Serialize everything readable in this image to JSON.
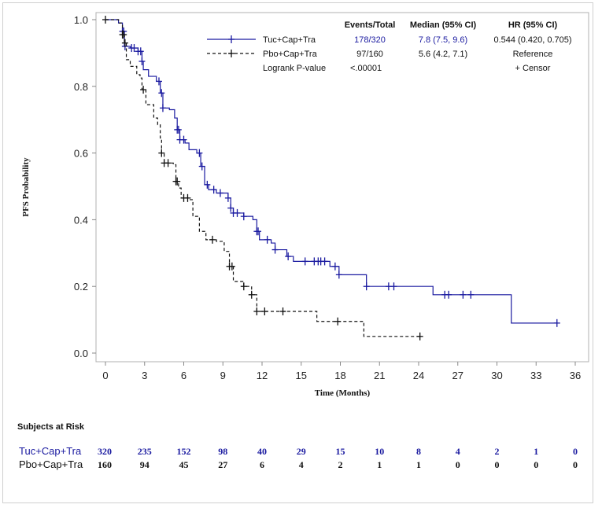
{
  "chart_data": {
    "type": "line",
    "subtype": "kaplan-meier",
    "xlabel": "Time (Months)",
    "ylabel": "PFS Probability",
    "xlim": [
      0,
      36
    ],
    "ylim": [
      0,
      1.0
    ],
    "xticks": [
      "0",
      "3",
      "6",
      "9",
      "12",
      "15",
      "18",
      "21",
      "24",
      "27",
      "30",
      "33",
      "36"
    ],
    "yticks": [
      "0.0",
      "0.2",
      "0.4",
      "0.6",
      "0.8",
      "1.0"
    ],
    "grid": false,
    "legend": {
      "placement": "top-right",
      "headers": [
        "Events/Total",
        "Median (95% CI)",
        "HR (95% CI)"
      ],
      "rows": [
        {
          "name": "Tuc+Cap+Tra",
          "events": "178/320",
          "median": "7.8 (7.5, 9.6)",
          "hr": "0.544 (0.420, 0.705)"
        },
        {
          "name": "Pbo+Cap+Tra",
          "events": "97/160",
          "median": "5.6 (4.2, 7.1)",
          "hr": "Reference"
        }
      ],
      "logrank_label": "Logrank P-value",
      "logrank_value": "<.00001",
      "censor_label": "+ Censor"
    },
    "series": [
      {
        "name": "Tuc+Cap+Tra",
        "color": "#1a1aa0",
        "style": "solid",
        "steps": [
          [
            0,
            1.0
          ],
          [
            1.0,
            0.99
          ],
          [
            1.3,
            0.965
          ],
          [
            1.45,
            0.92
          ],
          [
            1.9,
            0.915
          ],
          [
            2.5,
            0.905
          ],
          [
            2.8,
            0.875
          ],
          [
            2.9,
            0.85
          ],
          [
            3.3,
            0.83
          ],
          [
            3.9,
            0.815
          ],
          [
            4.2,
            0.78
          ],
          [
            4.4,
            0.735
          ],
          [
            4.9,
            0.73
          ],
          [
            5.3,
            0.705
          ],
          [
            5.5,
            0.67
          ],
          [
            5.7,
            0.64
          ],
          [
            6.1,
            0.63
          ],
          [
            6.4,
            0.61
          ],
          [
            7.0,
            0.6
          ],
          [
            7.3,
            0.56
          ],
          [
            7.6,
            0.505
          ],
          [
            7.9,
            0.49
          ],
          [
            8.5,
            0.48
          ],
          [
            9.4,
            0.465
          ],
          [
            9.6,
            0.435
          ],
          [
            9.8,
            0.42
          ],
          [
            10.6,
            0.41
          ],
          [
            11.3,
            0.4
          ],
          [
            11.6,
            0.365
          ],
          [
            11.8,
            0.34
          ],
          [
            12.7,
            0.33
          ],
          [
            13.0,
            0.31
          ],
          [
            13.9,
            0.29
          ],
          [
            14.4,
            0.275
          ],
          [
            17.2,
            0.26
          ],
          [
            17.9,
            0.235
          ],
          [
            20.0,
            0.2
          ],
          [
            25.1,
            0.175
          ],
          [
            31.1,
            0.09
          ]
        ],
        "end": 34.6,
        "censors": [
          1.3,
          1.4,
          1.5,
          2.0,
          2.2,
          2.5,
          2.7,
          2.8,
          4.1,
          4.3,
          4.4,
          5.5,
          5.6,
          5.7,
          6.0,
          7.2,
          7.4,
          7.8,
          8.3,
          8.8,
          9.4,
          9.6,
          9.8,
          10.1,
          10.6,
          11.6,
          11.7,
          12.4,
          13.0,
          14.0,
          15.3,
          16.0,
          16.3,
          16.5,
          16.8,
          17.6,
          17.9,
          20.0,
          21.7,
          22.1,
          26.0,
          26.3,
          27.4,
          28.0,
          34.6
        ]
      },
      {
        "name": "Pbo+Cap+Tra",
        "color": "#111111",
        "style": "dashed",
        "steps": [
          [
            0,
            1.0
          ],
          [
            1.0,
            0.99
          ],
          [
            1.3,
            0.955
          ],
          [
            1.45,
            0.93
          ],
          [
            1.6,
            0.88
          ],
          [
            1.9,
            0.86
          ],
          [
            2.4,
            0.835
          ],
          [
            2.65,
            0.825
          ],
          [
            2.8,
            0.79
          ],
          [
            3.1,
            0.745
          ],
          [
            3.7,
            0.705
          ],
          [
            4.0,
            0.685
          ],
          [
            4.2,
            0.645
          ],
          [
            4.3,
            0.6
          ],
          [
            4.5,
            0.57
          ],
          [
            5.2,
            0.565
          ],
          [
            5.4,
            0.515
          ],
          [
            5.6,
            0.495
          ],
          [
            5.8,
            0.465
          ],
          [
            6.4,
            0.46
          ],
          [
            6.7,
            0.41
          ],
          [
            7.2,
            0.365
          ],
          [
            7.7,
            0.34
          ],
          [
            8.5,
            0.335
          ],
          [
            9.1,
            0.305
          ],
          [
            9.5,
            0.26
          ],
          [
            9.8,
            0.215
          ],
          [
            10.6,
            0.2
          ],
          [
            11.2,
            0.175
          ],
          [
            11.6,
            0.125
          ],
          [
            16.2,
            0.095
          ],
          [
            19.8,
            0.05
          ]
        ],
        "end": 24.1,
        "censors": [
          0,
          1.3,
          1.4,
          1.5,
          2.9,
          4.3,
          4.5,
          4.8,
          5.4,
          5.5,
          6.0,
          6.3,
          8.2,
          9.5,
          9.7,
          10.6,
          11.2,
          11.6,
          12.2,
          13.6,
          17.8,
          24.1
        ]
      }
    ]
  },
  "risk_table": {
    "title": "Subjects at Risk",
    "rows": [
      {
        "label": "Tuc+Cap+Tra",
        "color": "#1a1aa0",
        "values": [
          "320",
          "235",
          "152",
          "98",
          "40",
          "29",
          "15",
          "10",
          "8",
          "4",
          "2",
          "1",
          "0"
        ]
      },
      {
        "label": "Pbo+Cap+Tra",
        "color": "#111111",
        "values": [
          "160",
          "94",
          "45",
          "27",
          "6",
          "4",
          "2",
          "1",
          "1",
          "0",
          "0",
          "0",
          "0"
        ]
      }
    ]
  }
}
